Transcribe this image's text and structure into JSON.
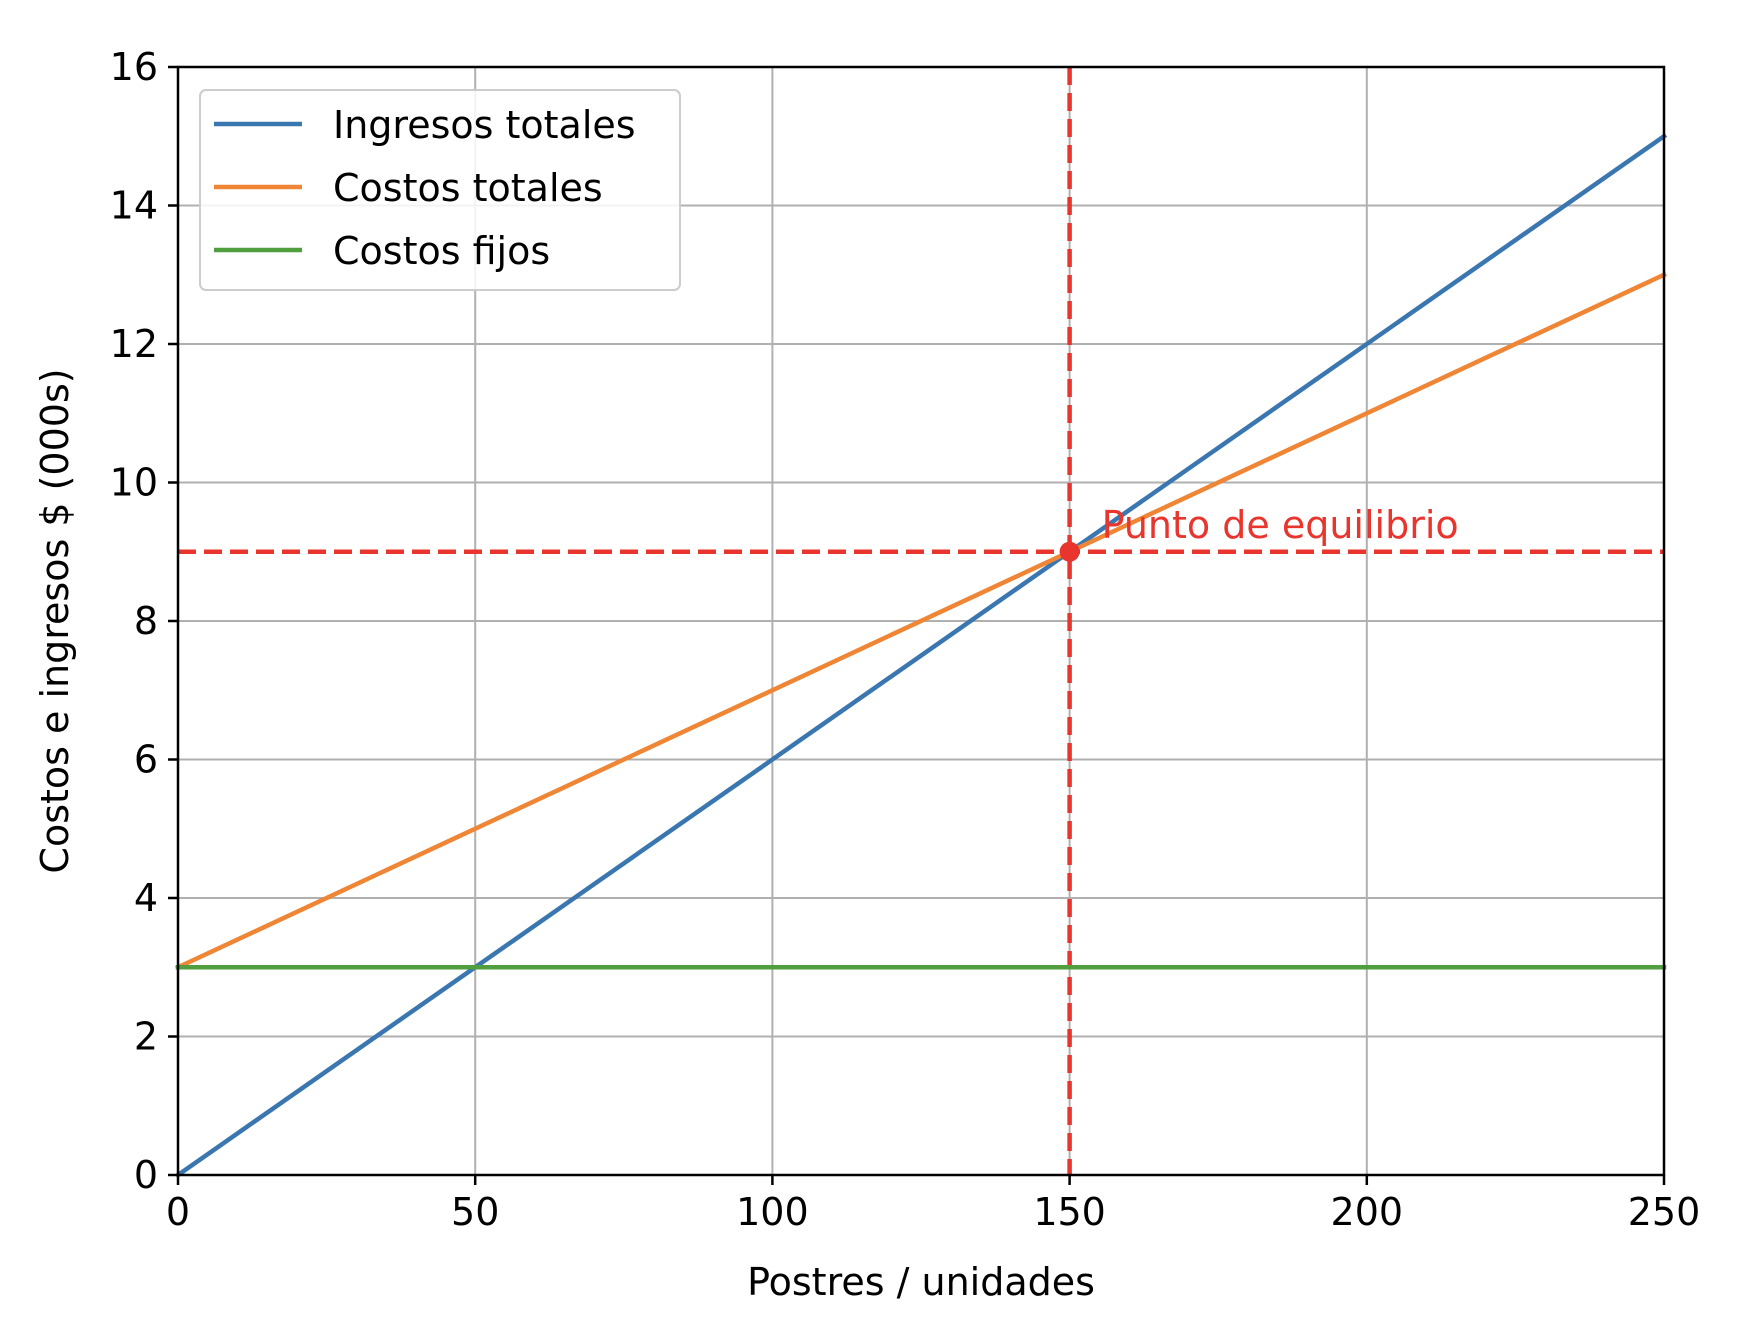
{
  "chart_data": {
    "type": "line",
    "title": "",
    "xlabel": "Postres / unidades",
    "ylabel": "Costos e ingresos $ (000s)",
    "xlim": [
      0,
      250
    ],
    "ylim": [
      0,
      16
    ],
    "x_ticks": [
      0,
      50,
      100,
      150,
      200,
      250
    ],
    "y_ticks": [
      0,
      2,
      4,
      6,
      8,
      10,
      12,
      14,
      16
    ],
    "x_tick_labels": [
      "0",
      "50",
      "100",
      "150",
      "200",
      "250"
    ],
    "y_tick_labels": [
      "0",
      "2",
      "4",
      "6",
      "8",
      "10",
      "12",
      "14",
      "16"
    ],
    "grid": true,
    "legend_position": "top-left",
    "series": [
      {
        "name": "Ingresos totales",
        "color": "#3a76af",
        "x": [
          0,
          250
        ],
        "y": [
          0,
          15
        ]
      },
      {
        "name": "Costos totales",
        "color": "#ef8636",
        "x": [
          0,
          250
        ],
        "y": [
          3,
          13
        ]
      },
      {
        "name": "Costos fijos",
        "color": "#519e3e",
        "x": [
          0,
          250
        ],
        "y": [
          3,
          3
        ]
      }
    ],
    "reference_lines": [
      {
        "orientation": "vertical",
        "value": 150,
        "color": "#e8352e",
        "style": "dashed"
      },
      {
        "orientation": "horizontal",
        "value": 9,
        "color": "#e8352e",
        "style": "dashed"
      }
    ],
    "annotations": [
      {
        "text": "Punto de equilibrio",
        "x": 150,
        "y": 9,
        "color": "#e8352e"
      }
    ]
  }
}
